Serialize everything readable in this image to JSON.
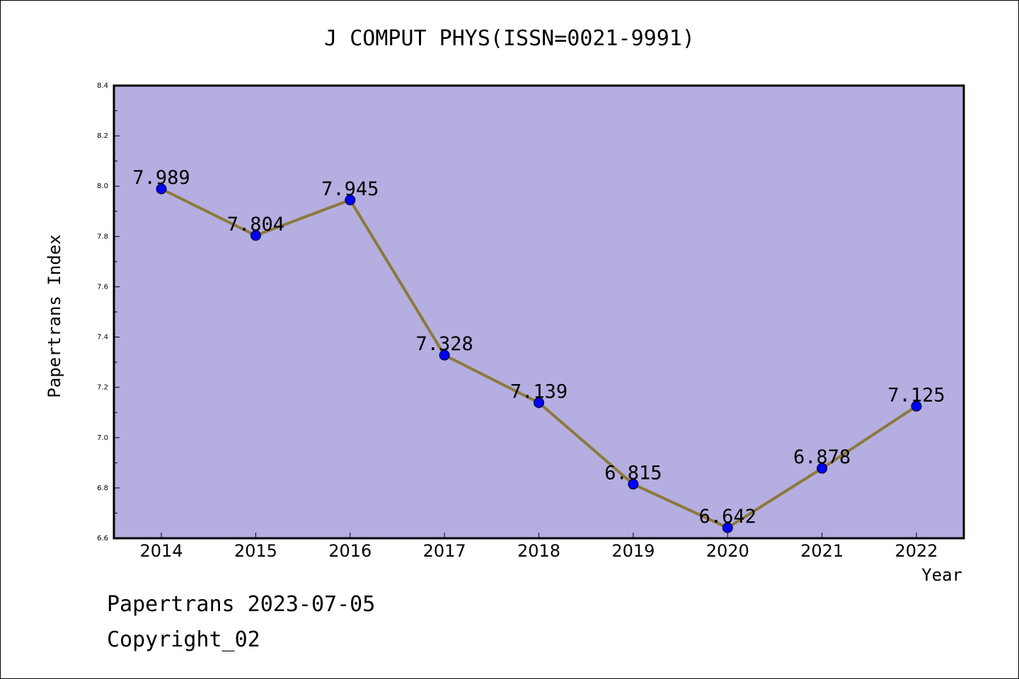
{
  "title": "J COMPUT PHYS(ISSN=0021-9991)",
  "footer": {
    "line1": "Papertrans 2023-07-05",
    "line2": "Copyright_02"
  },
  "colors": {
    "plot_bg": "#b5aee1",
    "line": "#8b7a3a",
    "marker": "#0000ff"
  },
  "chart_data": {
    "type": "line",
    "title": "J COMPUT PHYS(ISSN=0021-9991)",
    "xlabel": "Year",
    "ylabel": "Papertrans Index",
    "categories": [
      "2014",
      "2015",
      "2016",
      "2017",
      "2018",
      "2019",
      "2020",
      "2021",
      "2022"
    ],
    "series": [
      {
        "values": [
          7.989,
          7.804,
          7.945,
          7.328,
          7.139,
          6.815,
          6.642,
          6.878,
          7.125
        ],
        "labels": [
          "7.989",
          "7.804",
          "7.945",
          "7.328",
          "7.139",
          "6.815",
          "6.642",
          "6.878",
          "7.125"
        ]
      }
    ],
    "ylim": [
      6.6,
      8.4
    ],
    "yticks": [
      "6.6",
      "6.8",
      "7.0",
      "7.2",
      "7.4",
      "7.6",
      "7.8",
      "8.0",
      "8.2",
      "8.4"
    ],
    "grid": false,
    "legend": "none"
  }
}
